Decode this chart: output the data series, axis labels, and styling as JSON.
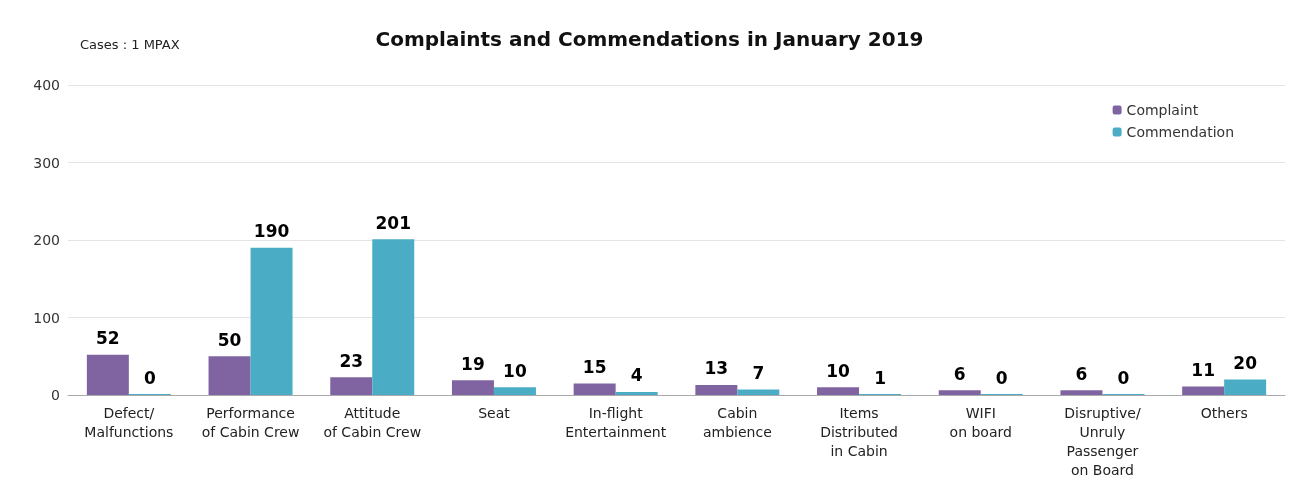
{
  "chart_data": {
    "type": "bar",
    "title": "Complaints and Commendations in January 2019",
    "annotations": [
      "Cases : 1 MPAX"
    ],
    "categories": [
      "Defect/\nMalfunctions",
      "Performance\nof Cabin Crew",
      "Attitude\nof Cabin Crew",
      "Seat",
      "In-flight\nEntertainment",
      "Cabin\nambience",
      "Items\nDistributed\nin Cabin",
      "WIFI\non board",
      "Disruptive/\nUnruly\nPassenger\non Board",
      "Others"
    ],
    "series": [
      {
        "name": "Complaint",
        "color": "#8064a2",
        "values": [
          52,
          50,
          23,
          19,
          15,
          13,
          10,
          6,
          6,
          11
        ]
      },
      {
        "name": "Commendation",
        "color": "#4bacc6",
        "values": [
          0,
          190,
          201,
          10,
          4,
          7,
          1,
          0,
          0,
          20
        ]
      }
    ],
    "ylim": [
      0,
      400
    ],
    "yticks": [
      0,
      100,
      200,
      300,
      400
    ],
    "grid": "y",
    "legend": "top right",
    "data_labels": true
  }
}
